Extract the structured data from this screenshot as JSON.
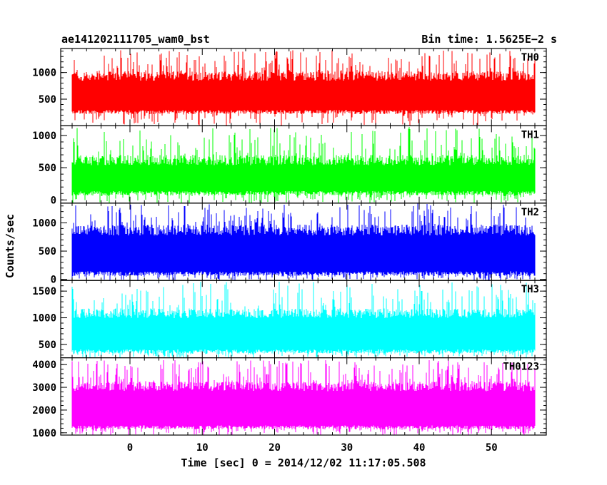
{
  "chart_data": {
    "type": "line",
    "title_left": "ae141202111705_wam0_bst",
    "title_right": "Bin time: 1.5625E−2 s",
    "xlabel": "Time [sec] 0 = 2014/12/02 11:17:05.508",
    "ylabel": "Counts/sec",
    "xlim": [
      -8,
      56
    ],
    "data_x_range": [
      -8,
      56
    ],
    "x_ticks": [
      0,
      10,
      20,
      30,
      40,
      50
    ],
    "grid": false,
    "series": [
      {
        "name": "TH0",
        "color": "#ff0000",
        "ylim": [
          0,
          1450
        ],
        "y_ticks": [
          500,
          1000
        ],
        "tick_labels": [
          "500",
          "1000"
        ],
        "base": 680,
        "spread": 300,
        "low_floor": 220,
        "spike_max": 1420
      },
      {
        "name": "TH1",
        "color": "#00ff00",
        "ylim": [
          -50,
          1150
        ],
        "y_ticks": [
          0,
          500,
          1000
        ],
        "tick_labels": [
          "0",
          "500",
          "1000"
        ],
        "base": 390,
        "spread": 270,
        "low_floor": 70,
        "spike_max": 1130
      },
      {
        "name": "TH2",
        "color": "#0000ff",
        "ylim": [
          -20,
          1350
        ],
        "y_ticks": [
          0,
          500,
          1000
        ],
        "tick_labels": [
          "0",
          "500",
          "1000"
        ],
        "base": 600,
        "spread": 320,
        "low_floor": 60,
        "spike_max": 1340
      },
      {
        "name": "TH3",
        "color": "#00ffff",
        "ylim": [
          250,
          1700
        ],
        "y_ticks": [
          500,
          1000,
          1500
        ],
        "tick_labels": [
          "500",
          "1000",
          "1500"
        ],
        "base": 830,
        "spread": 300,
        "low_floor": 330,
        "spike_max": 1680
      },
      {
        "name": "TH0123",
        "color": "#ff00ff",
        "ylim": [
          900,
          4300
        ],
        "y_ticks": [
          1000,
          2000,
          3000,
          4000
        ],
        "tick_labels": [
          "1000",
          "2000",
          "3000",
          "4000"
        ],
        "base": 2450,
        "spread": 700,
        "low_floor": 1150,
        "spike_max": 4200
      }
    ]
  }
}
